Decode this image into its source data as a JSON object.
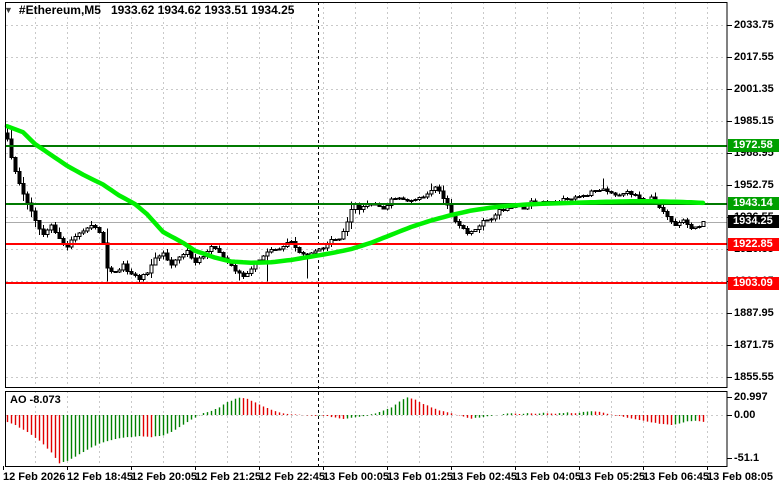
{
  "window": {
    "dropdown_marker": "▼",
    "symbol_title": "#Ethereum,M5",
    "ohlc_title": "1933.62 1934.62 1933.51 1934.25"
  },
  "colors": {
    "background": "#FFFFFF",
    "grid": "#C9C9C9",
    "border": "#000000",
    "separator": "#000000",
    "bid_line": "#ABABAB",
    "ma_line": "#00F000",
    "candle_outline": "#000000",
    "bull_fill": "#FFFFFF",
    "bear_fill": "#000000",
    "ao_up": "#008000",
    "ao_down": "#E00000",
    "level_green": "#007A00",
    "level_red": "#FF0000",
    "badge_green": "#00A000",
    "badge_red": "#FF0000",
    "badge_black": "#000000",
    "badge_text": "#FFFFFF"
  },
  "price_axis": {
    "ticks": [
      2033.75,
      2017.55,
      2001.35,
      1985.15,
      1968.95,
      1952.75,
      1936.55,
      1920.35,
      1904.15,
      1887.95,
      1871.75,
      1855.55
    ],
    "badges": [
      {
        "label": "1972.58",
        "value": 1972.58,
        "bg": "badge_green",
        "role": "resistance-level"
      },
      {
        "label": "1943.14",
        "value": 1943.14,
        "bg": "badge_green",
        "role": "resistance-level"
      },
      {
        "label": "1934.25",
        "value": 1934.25,
        "bg": "badge_black",
        "role": "current-price"
      },
      {
        "label": "1922.85",
        "value": 1922.85,
        "bg": "badge_red",
        "role": "support-level"
      },
      {
        "label": "1903.09",
        "value": 1903.09,
        "bg": "badge_red",
        "role": "support-level"
      }
    ]
  },
  "time_axis": {
    "labels": [
      "12 Feb 2026",
      "12 Feb 18:45",
      "12 Feb 20:05",
      "12 Feb 21:25",
      "12 Feb 22:45",
      "13 Feb 00:05",
      "13 Feb 01:25",
      "13 Feb 02:45",
      "13 Feb 04:05",
      "13 Feb 05:25",
      "13 Feb 06:45",
      "13 Feb 08:05"
    ]
  },
  "ao_panel": {
    "label": "AO -8.073",
    "scale_top": "20.997",
    "scale_zero": "0.00",
    "scale_bottom": "-51.1"
  },
  "chart_data": {
    "type": "candlestick",
    "symbol": "#Ethereum",
    "timeframe": "M5",
    "time_start": "12 Feb 2026 17:30",
    "time_end": "13 Feb 2026 08:05",
    "bars_count": 175,
    "interval_minutes": 5,
    "ylim": [
      1855.55,
      2033.75
    ],
    "y_tick_step": 16.2,
    "grid": true,
    "day_separator_bar": 78,
    "current_price": 1934.25,
    "last_bar": {
      "open": 1933.62,
      "high": 1934.62,
      "low": 1933.51,
      "close": 1934.25
    },
    "price_levels": [
      {
        "value": 1972.58,
        "color": "green",
        "role": "resistance"
      },
      {
        "value": 1943.14,
        "color": "green",
        "role": "resistance"
      },
      {
        "value": 1922.85,
        "color": "red",
        "role": "support"
      },
      {
        "value": 1903.09,
        "color": "red",
        "role": "support"
      }
    ],
    "close_anchors": [
      [
        0,
        1976
      ],
      [
        1,
        1966
      ],
      [
        3,
        1953
      ],
      [
        5,
        1944
      ],
      [
        7,
        1934
      ],
      [
        9,
        1927
      ],
      [
        11,
        1932
      ],
      [
        13,
        1925
      ],
      [
        15,
        1922
      ],
      [
        17,
        1927
      ],
      [
        19,
        1930
      ],
      [
        21,
        1932
      ],
      [
        23,
        1929
      ],
      [
        24,
        1924
      ],
      [
        25,
        1911
      ],
      [
        27,
        1908
      ],
      [
        29,
        1912
      ],
      [
        31,
        1907
      ],
      [
        33,
        1905.5
      ],
      [
        35,
        1908
      ],
      [
        37,
        1915
      ],
      [
        39,
        1918
      ],
      [
        41,
        1913
      ],
      [
        43,
        1916
      ],
      [
        45,
        1919
      ],
      [
        47,
        1914
      ],
      [
        49,
        1917
      ],
      [
        51,
        1921
      ],
      [
        53,
        1919
      ],
      [
        55,
        1914
      ],
      [
        57,
        1909
      ],
      [
        59,
        1907
      ],
      [
        61,
        1910
      ],
      [
        63,
        1915
      ],
      [
        65,
        1919
      ],
      [
        67,
        1920
      ],
      [
        69,
        1922
      ],
      [
        71,
        1924
      ],
      [
        73,
        1919
      ],
      [
        75,
        1917
      ],
      [
        77,
        1919
      ],
      [
        79,
        1921
      ],
      [
        81,
        1925
      ],
      [
        83,
        1925
      ],
      [
        84,
        1929
      ],
      [
        85,
        1934
      ],
      [
        86,
        1941
      ],
      [
        87,
        1944
      ],
      [
        88,
        1941
      ],
      [
        90,
        1943
      ],
      [
        92,
        1944
      ],
      [
        94,
        1941
      ],
      [
        96,
        1945
      ],
      [
        98,
        1947
      ],
      [
        100,
        1944
      ],
      [
        102,
        1946
      ],
      [
        104,
        1947
      ],
      [
        106,
        1950
      ],
      [
        107,
        1952
      ],
      [
        109,
        1946
      ],
      [
        111,
        1938
      ],
      [
        113,
        1932
      ],
      [
        115,
        1928
      ],
      [
        117,
        1930
      ],
      [
        119,
        1934
      ],
      [
        121,
        1936
      ],
      [
        123,
        1940
      ],
      [
        125,
        1941
      ],
      [
        127,
        1943
      ],
      [
        129,
        1941
      ],
      [
        131,
        1944
      ],
      [
        133,
        1943
      ],
      [
        135,
        1945
      ],
      [
        137,
        1944
      ],
      [
        139,
        1946
      ],
      [
        141,
        1945
      ],
      [
        143,
        1947
      ],
      [
        145,
        1948
      ],
      [
        147,
        1950
      ],
      [
        149,
        1951
      ],
      [
        151,
        1949
      ],
      [
        153,
        1948
      ],
      [
        155,
        1950
      ],
      [
        157,
        1947
      ],
      [
        159,
        1945
      ],
      [
        161,
        1947
      ],
      [
        163,
        1941
      ],
      [
        165,
        1936
      ],
      [
        167,
        1932
      ],
      [
        169,
        1935
      ],
      [
        171,
        1931
      ],
      [
        173,
        1931
      ],
      [
        174,
        1934.25
      ]
    ],
    "wick_overrides": {
      "0": {
        "high": 1981.5
      },
      "21": {
        "high": 1934.5
      },
      "25": {
        "low": 1904
      },
      "33": {
        "low": 1903.3
      },
      "58": {
        "low": 1904.5
      },
      "65": {
        "low": 1904
      },
      "75": {
        "low": 1905.5
      },
      "106": {
        "high": 1953.5
      },
      "149": {
        "high": 1956
      }
    },
    "ma_anchors": [
      [
        0,
        1982.5
      ],
      [
        4,
        1979.5
      ],
      [
        7,
        1973.5
      ],
      [
        11,
        1968
      ],
      [
        15,
        1962.5
      ],
      [
        19,
        1958
      ],
      [
        24,
        1953
      ],
      [
        28,
        1947.5
      ],
      [
        32,
        1943.1
      ],
      [
        35,
        1938
      ],
      [
        39,
        1929
      ],
      [
        44,
        1923.5
      ],
      [
        47,
        1919.5
      ],
      [
        52,
        1916
      ],
      [
        56,
        1914
      ],
      [
        61,
        1913.4
      ],
      [
        66,
        1913.6
      ],
      [
        71,
        1914.8
      ],
      [
        76,
        1916.5
      ],
      [
        81,
        1918.2
      ],
      [
        86,
        1920.3
      ],
      [
        91,
        1923.5
      ],
      [
        96,
        1927.5
      ],
      [
        101,
        1931.5
      ],
      [
        106,
        1934.8
      ],
      [
        111,
        1937.5
      ],
      [
        116,
        1939.8
      ],
      [
        121,
        1941.3
      ],
      [
        126,
        1942.3
      ],
      [
        131,
        1943
      ],
      [
        136,
        1943.4
      ],
      [
        141,
        1943.7
      ],
      [
        146,
        1944
      ],
      [
        151,
        1944.3
      ],
      [
        156,
        1944.5
      ],
      [
        161,
        1944.5
      ],
      [
        166,
        1944.3
      ],
      [
        171,
        1944
      ],
      [
        174,
        1943.7
      ]
    ],
    "ao": {
      "name": "Awesome Oscillator",
      "last_value": -8.073,
      "scale": {
        "top": 20.997,
        "zero": 0.0,
        "bottom": -51.1
      },
      "anchors": [
        [
          0,
          -8
        ],
        [
          2,
          -12
        ],
        [
          5,
          -20
        ],
        [
          8,
          -30
        ],
        [
          11,
          -44
        ],
        [
          13,
          -57
        ],
        [
          15,
          -54
        ],
        [
          18,
          -46
        ],
        [
          21,
          -38
        ],
        [
          24,
          -32
        ],
        [
          27,
          -28
        ],
        [
          30,
          -26
        ],
        [
          33,
          -25
        ],
        [
          36,
          -26
        ],
        [
          39,
          -24
        ],
        [
          41,
          -20
        ],
        [
          43,
          -14
        ],
        [
          45,
          -8
        ],
        [
          47,
          -3
        ],
        [
          49,
          2
        ],
        [
          51,
          5
        ],
        [
          53,
          9
        ],
        [
          55,
          15
        ],
        [
          57,
          19
        ],
        [
          58,
          20.5
        ],
        [
          60,
          19
        ],
        [
          62,
          15
        ],
        [
          64,
          10
        ],
        [
          66,
          6
        ],
        [
          68,
          3
        ],
        [
          70,
          1.5
        ],
        [
          72,
          0.5
        ],
        [
          74,
          0
        ],
        [
          76,
          -0.5
        ],
        [
          78,
          -1
        ],
        [
          80,
          -1.5
        ],
        [
          82,
          -3
        ],
        [
          84,
          -4.5
        ],
        [
          86,
          -3.5
        ],
        [
          88,
          -2
        ],
        [
          90,
          -0.5
        ],
        [
          92,
          2
        ],
        [
          94,
          5
        ],
        [
          96,
          9
        ],
        [
          98,
          16
        ],
        [
          100,
          21
        ],
        [
          102,
          18
        ],
        [
          104,
          13
        ],
        [
          106,
          9
        ],
        [
          108,
          5.5
        ],
        [
          110,
          3
        ],
        [
          112,
          0.5
        ],
        [
          114,
          -2
        ],
        [
          116,
          -4
        ],
        [
          118,
          -3
        ],
        [
          120,
          -1.5
        ],
        [
          122,
          -0.5
        ],
        [
          124,
          1
        ],
        [
          126,
          2
        ],
        [
          128,
          1
        ],
        [
          130,
          2.5
        ],
        [
          132,
          1.5
        ],
        [
          134,
          2.5
        ],
        [
          136,
          1.5
        ],
        [
          138,
          2
        ],
        [
          140,
          3
        ],
        [
          142,
          2
        ],
        [
          144,
          3.5
        ],
        [
          146,
          4.5
        ],
        [
          148,
          3.5
        ],
        [
          150,
          1.5
        ],
        [
          152,
          -0.5
        ],
        [
          154,
          -2
        ],
        [
          156,
          -4
        ],
        [
          158,
          -6
        ],
        [
          160,
          -8
        ],
        [
          162,
          -9.5
        ],
        [
          164,
          -10.5
        ],
        [
          166,
          -11.5
        ],
        [
          168,
          -10
        ],
        [
          170,
          -7.5
        ],
        [
          172,
          -6.5
        ],
        [
          173,
          -7.5
        ],
        [
          174,
          -8.073
        ]
      ]
    }
  }
}
